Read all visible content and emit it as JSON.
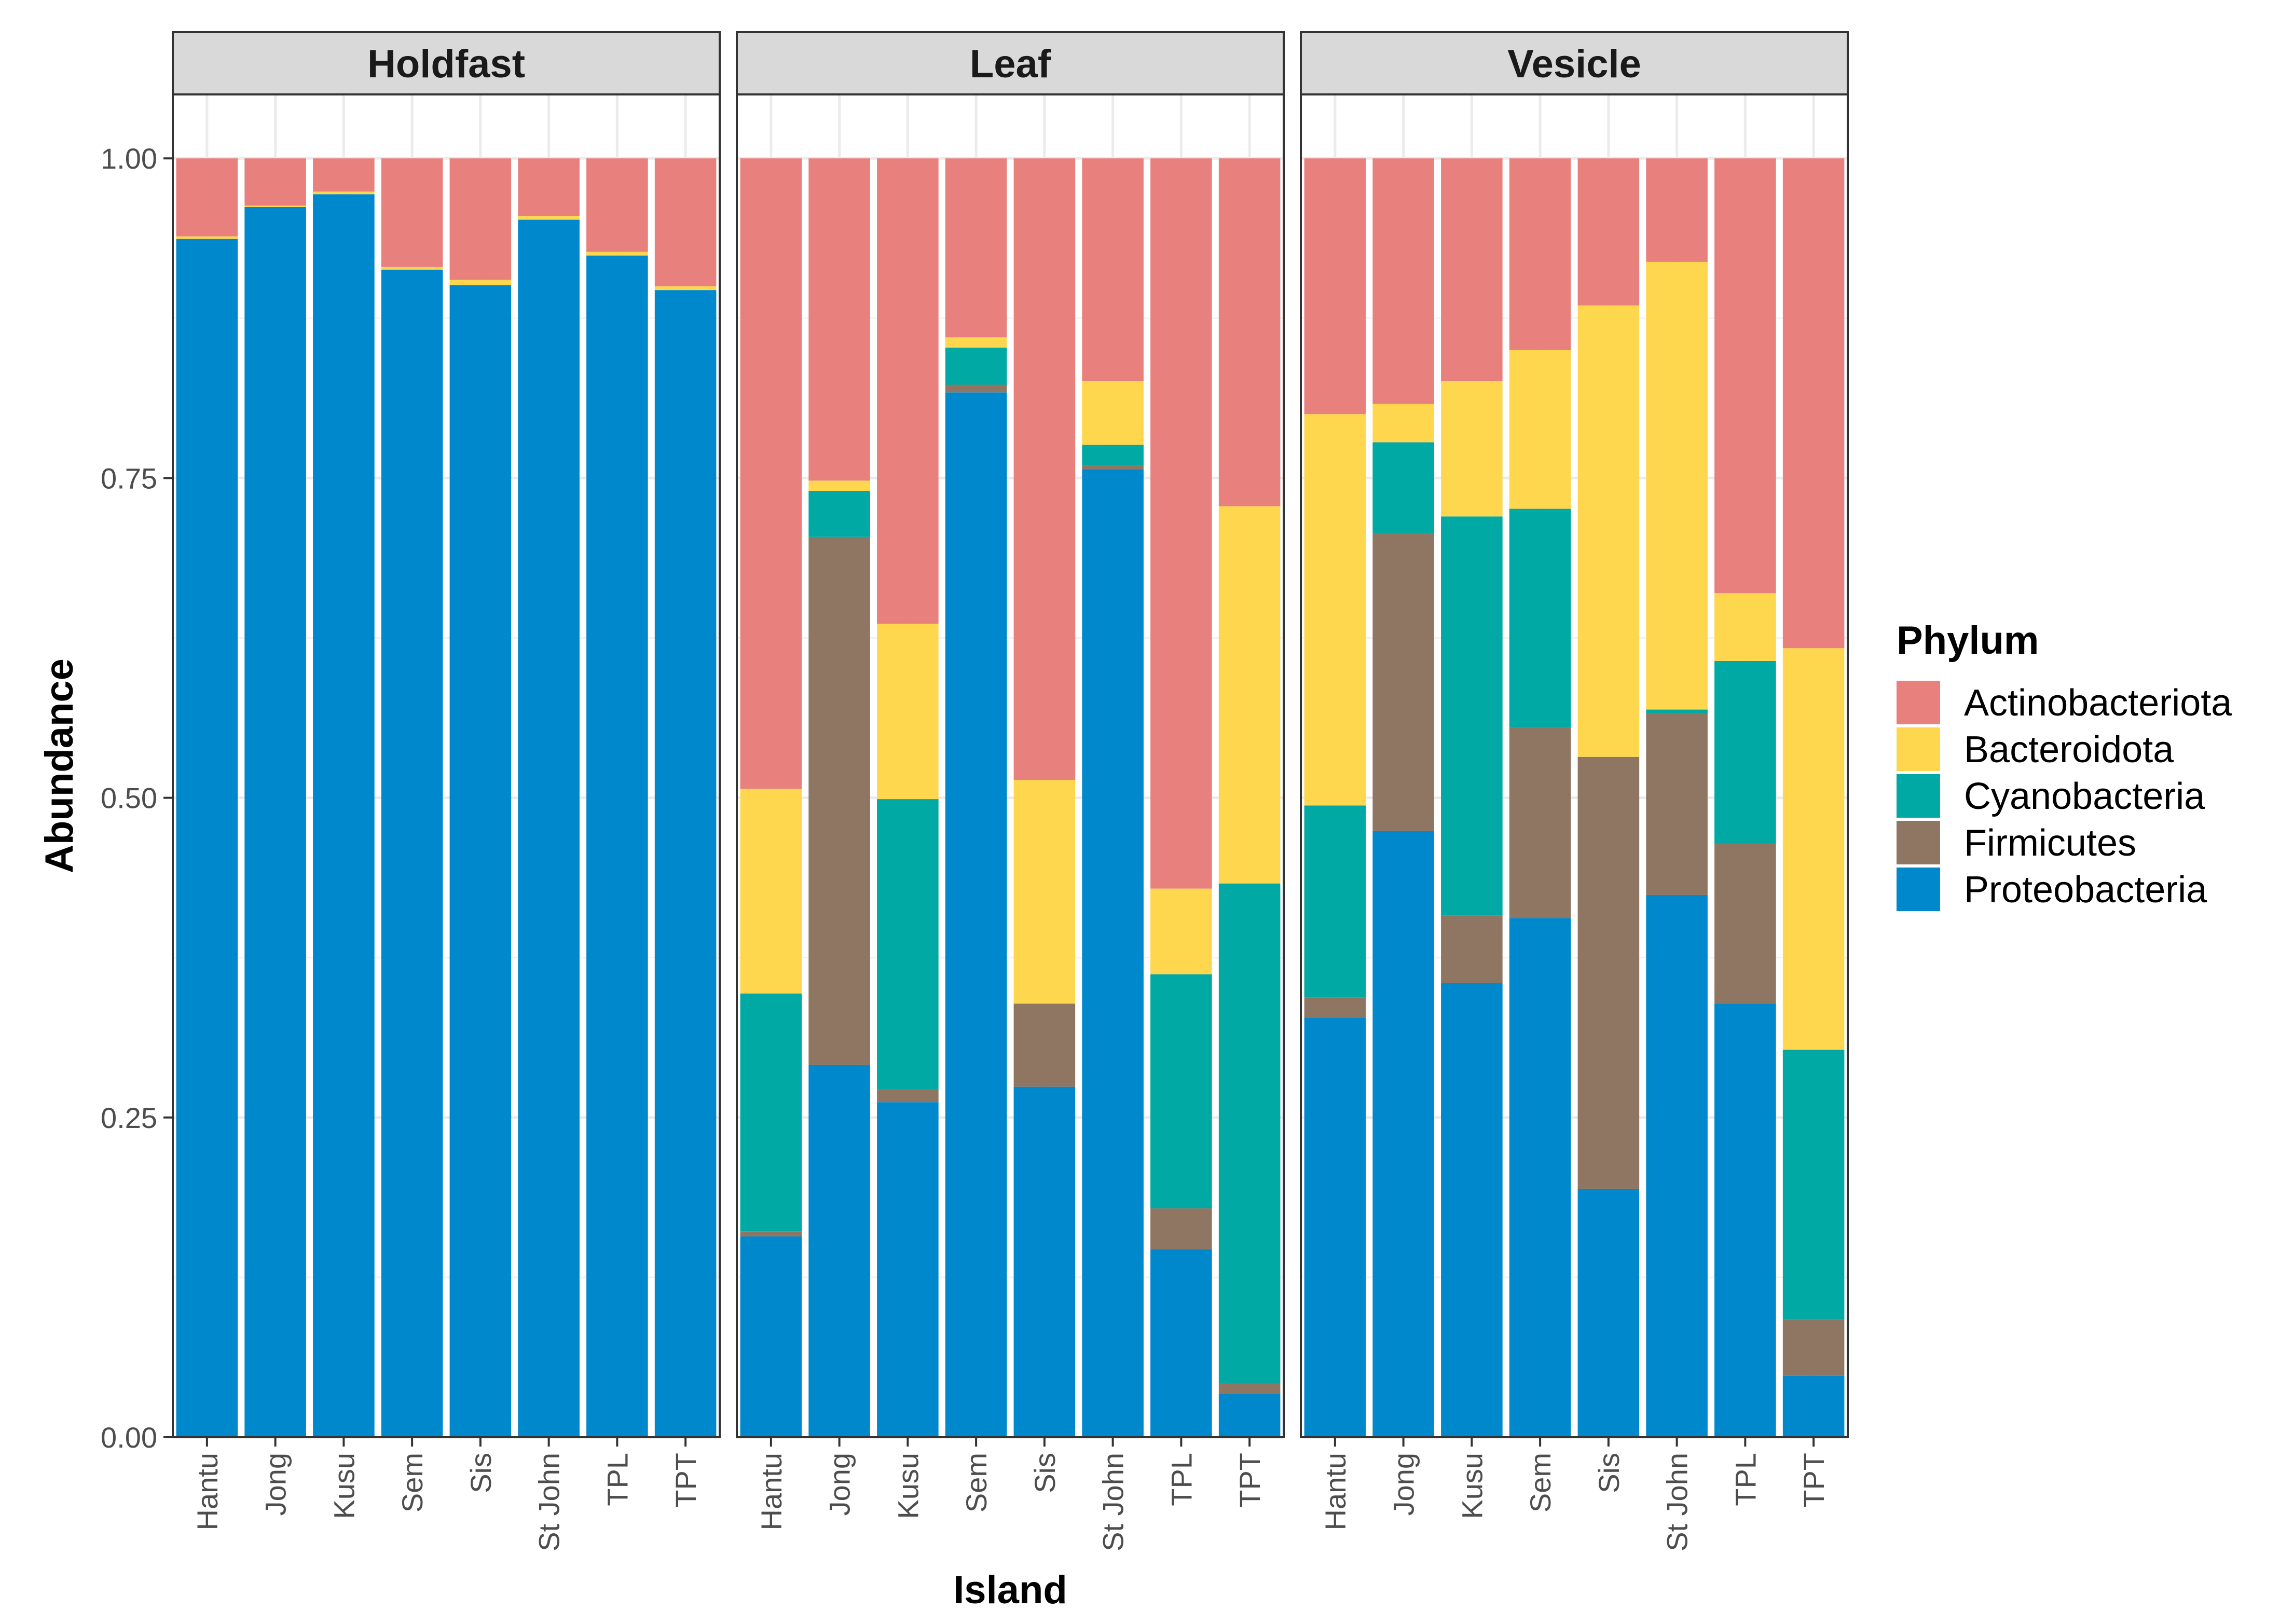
{
  "chart_data": {
    "type": "bar",
    "stacked": true,
    "facets": [
      "Holdfast",
      "Leaf",
      "Vesicle"
    ],
    "categories": [
      "Hantu",
      "Jong",
      "Kusu",
      "Sem",
      "Sis",
      "St John",
      "TPL",
      "TPT"
    ],
    "xlabel": "Island",
    "ylabel": "Abundance",
    "ylim": [
      0,
      1.05
    ],
    "yticks": [
      0,
      0.25,
      0.5,
      0.75,
      1.0
    ],
    "ytick_labels": [
      "0.00",
      "0.25",
      "0.50",
      "0.75",
      "1.00"
    ],
    "grid": true,
    "legend": {
      "title": "Phylum",
      "position": "right",
      "entries": [
        "Actinobacteriota",
        "Bacteroidota",
        "Cyanobacteria",
        "Firmicutes",
        "Proteobacteria"
      ]
    },
    "colors": {
      "Actinobacteriota": "#E8807E",
      "Bacteroidota": "#FED74F",
      "Cyanobacteria": "#00A9A3",
      "Firmicutes": "#8E7663",
      "Proteobacteria": "#0088CC"
    },
    "stack_order_bottom_to_top": [
      "Proteobacteria",
      "Firmicutes",
      "Cyanobacteria",
      "Bacteroidota",
      "Actinobacteriota"
    ],
    "series": {
      "Holdfast": [
        {
          "name": "Proteobacteria",
          "values": [
            0.937,
            0.962,
            0.972,
            0.913,
            0.901,
            0.952,
            0.924,
            0.897
          ]
        },
        {
          "name": "Firmicutes",
          "values": [
            0.0,
            0.0,
            0.0,
            0.0,
            0.0,
            0.0,
            0.0,
            0.0
          ]
        },
        {
          "name": "Cyanobacteria",
          "values": [
            0.0,
            0.0,
            0.0,
            0.0,
            0.0,
            0.0,
            0.0,
            0.0
          ]
        },
        {
          "name": "Bacteroidota",
          "values": [
            0.002,
            0.001,
            0.002,
            0.002,
            0.004,
            0.003,
            0.003,
            0.003
          ]
        },
        {
          "name": "Actinobacteriota",
          "values": [
            0.061,
            0.037,
            0.026,
            0.085,
            0.095,
            0.045,
            0.073,
            0.1
          ]
        }
      ],
      "Leaf": [
        {
          "name": "Proteobacteria",
          "values": [
            0.157,
            0.291,
            0.262,
            0.817,
            0.274,
            0.757,
            0.147,
            0.034
          ]
        },
        {
          "name": "Firmicutes",
          "values": [
            0.004,
            0.413,
            0.01,
            0.006,
            0.065,
            0.003,
            0.032,
            0.008
          ]
        },
        {
          "name": "Cyanobacteria",
          "values": [
            0.186,
            0.036,
            0.227,
            0.029,
            0.0,
            0.016,
            0.183,
            0.391
          ]
        },
        {
          "name": "Bacteroidota",
          "values": [
            0.16,
            0.008,
            0.137,
            0.008,
            0.175,
            0.05,
            0.067,
            0.295
          ]
        },
        {
          "name": "Actinobacteriota",
          "values": [
            0.493,
            0.252,
            0.364,
            0.14,
            0.486,
            0.174,
            0.571,
            0.272
          ]
        }
      ],
      "Vesicle": [
        {
          "name": "Proteobacteria",
          "values": [
            0.328,
            0.474,
            0.355,
            0.406,
            0.194,
            0.424,
            0.339,
            0.048
          ]
        },
        {
          "name": "Firmicutes",
          "values": [
            0.016,
            0.233,
            0.053,
            0.149,
            0.338,
            0.142,
            0.125,
            0.044
          ]
        },
        {
          "name": "Cyanobacteria",
          "values": [
            0.15,
            0.071,
            0.312,
            0.171,
            0.0,
            0.003,
            0.143,
            0.211
          ]
        },
        {
          "name": "Bacteroidota",
          "values": [
            0.306,
            0.03,
            0.106,
            0.124,
            0.353,
            0.35,
            0.053,
            0.314
          ]
        },
        {
          "name": "Actinobacteriota",
          "values": [
            0.2,
            0.192,
            0.174,
            0.15,
            0.115,
            0.081,
            0.34,
            0.383
          ]
        }
      ]
    }
  }
}
